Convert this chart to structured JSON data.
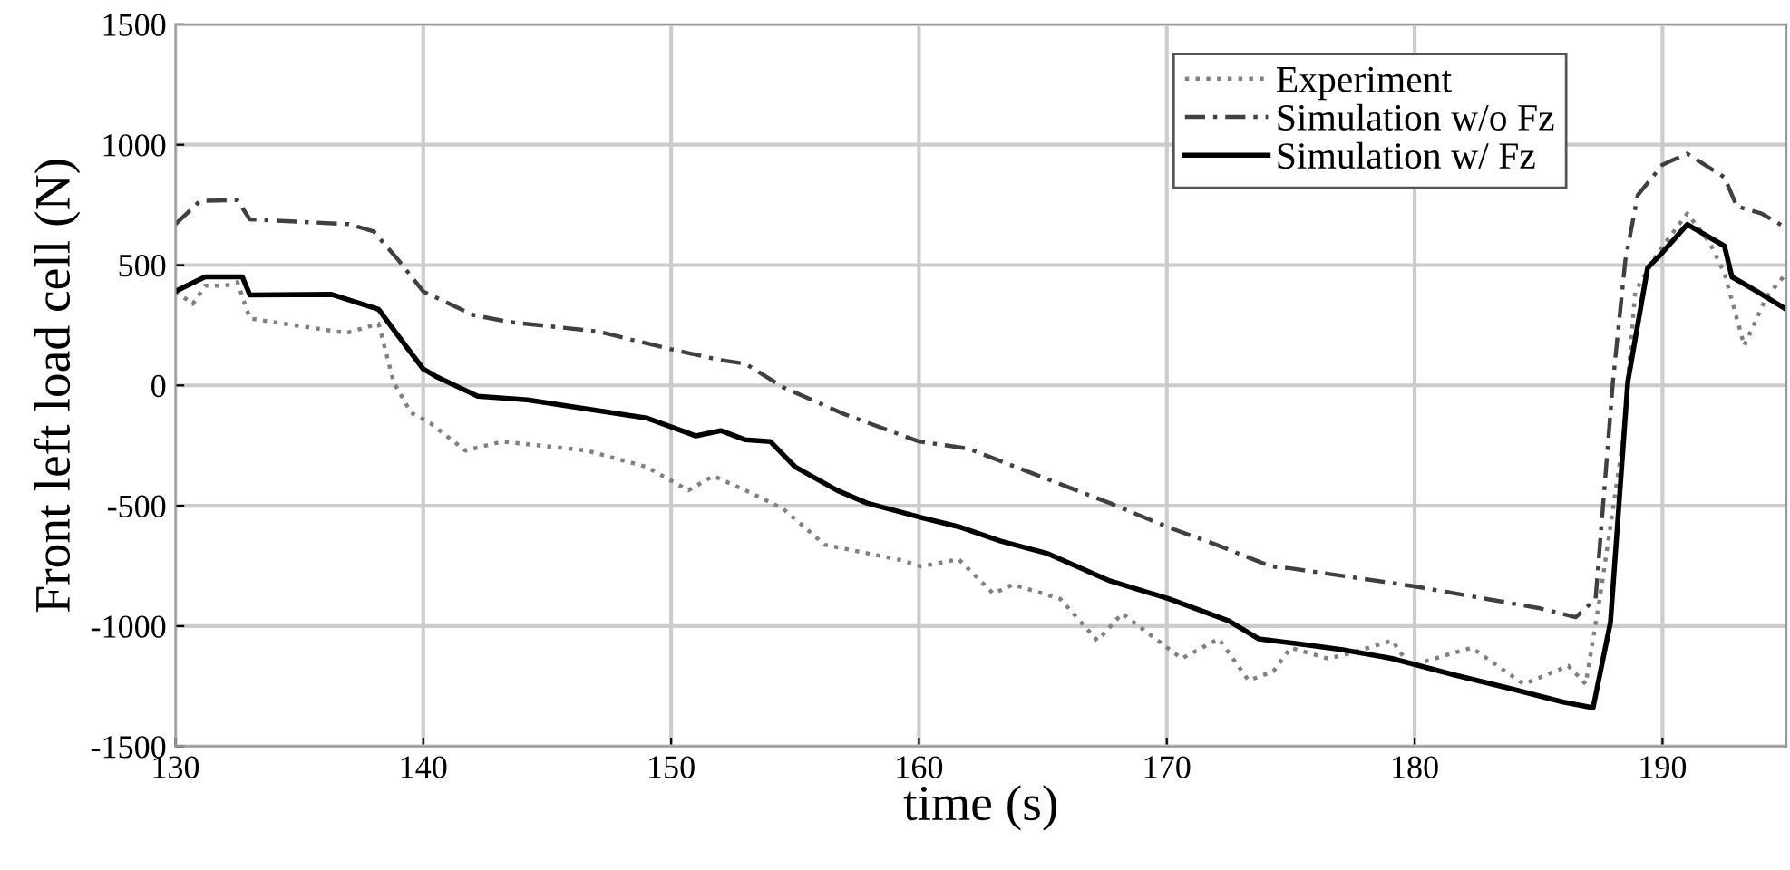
{
  "chart_data": {
    "type": "line",
    "xlabel": "time (s)",
    "ylabel": "Front left load cell (N)",
    "xlim": [
      130,
      195
    ],
    "ylim": [
      -1500,
      1500
    ],
    "xticks": [
      130,
      140,
      150,
      160,
      170,
      180,
      190
    ],
    "yticks": [
      -1500,
      -1000,
      -500,
      0,
      500,
      1000,
      1500
    ],
    "grid": true,
    "legend": "top right",
    "series": [
      {
        "name": "Experiment",
        "color": "#808080",
        "line_style": "dotted",
        "x": [
          130,
          130.7,
          131.2,
          132,
          132.5,
          133,
          134.4,
          136.9,
          138.2,
          138.8,
          139.5,
          140.3,
          141.7,
          143.2,
          146.6,
          149,
          149.8,
          150.7,
          151.7,
          153,
          154.5,
          156.2,
          159.1,
          160.1,
          161.6,
          163,
          163.8,
          165.7,
          167.2,
          168.2,
          170.6,
          172.1,
          173.3,
          174.3,
          175,
          176.5,
          177.4,
          179.1,
          179.8,
          182.3,
          184.4,
          186.2,
          186.9,
          187.5,
          188.4,
          188.9,
          189.9,
          191,
          191.9,
          192.5,
          193.3,
          194.2,
          195
        ],
        "values": [
          391,
          338,
          414,
          414,
          429,
          278,
          256,
          218,
          256,
          15,
          -113,
          -158,
          -271,
          -233,
          -271,
          -338,
          -384,
          -436,
          -376,
          -436,
          -511,
          -662,
          -722,
          -752,
          -722,
          -865,
          -827,
          -887,
          -1060,
          -948,
          -1135,
          -1053,
          -1226,
          -1188,
          -1090,
          -1135,
          -1113,
          -1060,
          -1165,
          -1090,
          -1241,
          -1165,
          -1241,
          -865,
          -233,
          391,
          564,
          714,
          594,
          466,
          165,
          368,
          466
        ]
      },
      {
        "name": "Simulation w/o Fz",
        "color": "#404040",
        "line_style": "dashed",
        "x": [
          130,
          131,
          132.5,
          133,
          137,
          138,
          139,
          140,
          142,
          143.5,
          147,
          150,
          152,
          153,
          154.5,
          157,
          160,
          162,
          167.7,
          170,
          172,
          174.2,
          175,
          177,
          180,
          185,
          186.5,
          187.3,
          188,
          188.5,
          189,
          190,
          191,
          192.5,
          193,
          194,
          195
        ],
        "values": [
          670,
          767,
          770,
          690,
          670,
          640,
          520,
          390,
          293,
          263,
          225,
          150,
          105,
          90,
          -7,
          -120,
          -233,
          -263,
          -489,
          -587,
          -662,
          -752,
          -760,
          -790,
          -835,
          -925,
          -963,
          -887,
          15,
          519,
          790,
          917,
          963,
          865,
          744,
          714,
          654
        ]
      },
      {
        "name": "Simulation w/ Fz",
        "color": "#000000",
        "line_style": "solid",
        "x": [
          130,
          131.2,
          132.7,
          133,
          136.3,
          138.2,
          138.9,
          140,
          140.5,
          142.2,
          144.2,
          146.6,
          149,
          151,
          152,
          153,
          154,
          155,
          156.7,
          157.9,
          160.1,
          161.6,
          163.3,
          165.2,
          167.7,
          170.1,
          172.5,
          173.7,
          175.4,
          177.1,
          179.1,
          181.6,
          184,
          186,
          187.2,
          187.9,
          188.6,
          189.4,
          189.9,
          191,
          192.5,
          192.8,
          193.8,
          195
        ],
        "values": [
          391,
          451,
          451,
          376,
          378,
          316,
          218,
          68,
          38,
          -45,
          -60,
          -98,
          -135,
          -210,
          -188,
          -226,
          -233,
          -338,
          -436,
          -489,
          -549,
          -587,
          -647,
          -699,
          -812,
          -887,
          -978,
          -1053,
          -1075,
          -1098,
          -1135,
          -1203,
          -1263,
          -1316,
          -1339,
          -985,
          15,
          489,
          541,
          669,
          579,
          451,
          391,
          316
        ]
      }
    ]
  }
}
